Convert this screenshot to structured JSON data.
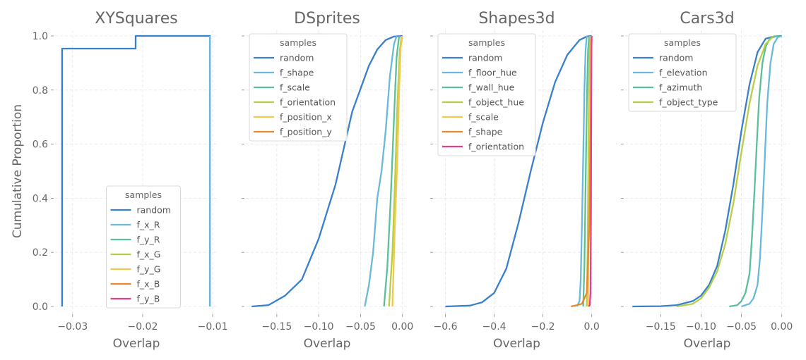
{
  "figure": {
    "ylabel": "Cumulative Proportion",
    "yticks": [
      0.0,
      0.2,
      0.4,
      0.6,
      0.8,
      1.0
    ],
    "ytick_labels": [
      "0.0",
      "0.2",
      "0.4",
      "0.6",
      "0.8",
      "1.0"
    ],
    "legend_title": "samples"
  },
  "chart_data": [
    {
      "type": "line",
      "title": "XYSquares",
      "xlabel": "Overlap",
      "ylabel": "Cumulative Proportion",
      "xlim": [
        -0.0325,
        -0.0093
      ],
      "ylim": [
        0,
        1
      ],
      "xticks": [
        -0.03,
        -0.02,
        -0.01
      ],
      "xtick_labels": [
        "−0.03",
        "−0.02",
        "−0.01"
      ],
      "legend_placement": "lower-center",
      "series": [
        {
          "name": "random",
          "color": "#3a7fcc",
          "x": [
            -0.0315,
            -0.0315,
            -0.021,
            -0.021,
            -0.0104,
            -0.0104
          ],
          "y": [
            0.0,
            0.953,
            0.953,
            1.0,
            1.0,
            0.0
          ]
        },
        {
          "name": "f_x_R",
          "color": "#6ab9d8",
          "x": [
            -0.0104,
            -0.0104
          ],
          "y": [
            0.0,
            1.0
          ]
        },
        {
          "name": "f_y_R",
          "color": "#5cbf9a",
          "x": [],
          "y": []
        },
        {
          "name": "f_x_G",
          "color": "#b5cf4a",
          "x": [],
          "y": []
        },
        {
          "name": "f_y_G",
          "color": "#f2c94c",
          "x": [],
          "y": []
        },
        {
          "name": "f_x_B",
          "color": "#e8892f",
          "x": [],
          "y": []
        },
        {
          "name": "f_y_B",
          "color": "#e83e8c",
          "x": [],
          "y": []
        }
      ]
    },
    {
      "type": "line",
      "title": "DSprites",
      "xlabel": "Overlap",
      "xlim": [
        -0.187,
        0.007
      ],
      "ylim": [
        0,
        1
      ],
      "xticks": [
        -0.15,
        -0.1,
        -0.05,
        0.0
      ],
      "xtick_labels": [
        "−0.15",
        "−0.10",
        "−0.05",
        "0.00"
      ],
      "legend_placement": "top-left",
      "series": [
        {
          "name": "random",
          "color": "#3a7fcc",
          "x": [
            -0.18,
            -0.16,
            -0.14,
            -0.12,
            -0.1,
            -0.08,
            -0.06,
            -0.04,
            -0.03,
            -0.02,
            -0.01,
            0.0
          ],
          "y": [
            0.0,
            0.005,
            0.04,
            0.1,
            0.25,
            0.45,
            0.72,
            0.89,
            0.95,
            0.985,
            0.998,
            1.0
          ]
        },
        {
          "name": "f_shape",
          "color": "#6ab9d8",
          "x": [
            -0.045,
            -0.04,
            -0.035,
            -0.03,
            -0.025,
            -0.02,
            -0.015,
            -0.01,
            -0.007
          ],
          "y": [
            0.0,
            0.08,
            0.2,
            0.4,
            0.5,
            0.65,
            0.85,
            0.97,
            1.0
          ]
        },
        {
          "name": "f_scale",
          "color": "#5cbf9a",
          "x": [
            -0.022,
            -0.018,
            -0.014,
            -0.01,
            -0.007,
            -0.004
          ],
          "y": [
            0.0,
            0.15,
            0.4,
            0.7,
            0.92,
            1.0
          ]
        },
        {
          "name": "f_orientation",
          "color": "#b5cf4a",
          "x": [
            -0.016,
            -0.012,
            -0.009,
            -0.006,
            -0.003,
            -0.001
          ],
          "y": [
            0.0,
            0.2,
            0.45,
            0.75,
            0.95,
            1.0
          ]
        },
        {
          "name": "f_position_x",
          "color": "#f2c94c",
          "x": [
            -0.012,
            -0.009,
            -0.006,
            -0.004,
            -0.002,
            0.0
          ],
          "y": [
            0.0,
            0.3,
            0.55,
            0.8,
            0.96,
            1.0
          ]
        },
        {
          "name": "f_position_y",
          "color": "#e8892f",
          "x": [],
          "y": []
        }
      ]
    },
    {
      "type": "line",
      "title": "Shapes3d",
      "xlabel": "Overlap",
      "xlim": [
        -0.645,
        0.03
      ],
      "ylim": [
        0,
        1
      ],
      "xticks": [
        -0.6,
        -0.4,
        -0.2,
        0.0
      ],
      "xtick_labels": [
        "−0.6",
        "−0.4",
        "−0.2",
        "0.0"
      ],
      "legend_placement": "top-left",
      "series": [
        {
          "name": "random",
          "color": "#3a7fcc",
          "x": [
            -0.6,
            -0.5,
            -0.45,
            -0.4,
            -0.35,
            -0.3,
            -0.25,
            -0.2,
            -0.15,
            -0.1,
            -0.05,
            -0.02,
            0.0
          ],
          "y": [
            0.0,
            0.003,
            0.015,
            0.05,
            0.14,
            0.31,
            0.5,
            0.68,
            0.83,
            0.93,
            0.985,
            0.998,
            1.0
          ]
        },
        {
          "name": "f_floor_hue",
          "color": "#6ab9d8",
          "x": [
            -0.06,
            -0.05,
            -0.045,
            -0.04,
            -0.035,
            -0.03,
            -0.025,
            -0.02
          ],
          "y": [
            0.0,
            0.02,
            0.1,
            0.3,
            0.55,
            0.8,
            0.95,
            1.0
          ]
        },
        {
          "name": "f_wall_hue",
          "color": "#5cbf9a",
          "x": [
            -0.035,
            -0.03,
            -0.025,
            -0.02,
            -0.015,
            -0.01
          ],
          "y": [
            0.0,
            0.15,
            0.45,
            0.75,
            0.95,
            1.0
          ]
        },
        {
          "name": "f_object_hue",
          "color": "#b5cf4a",
          "x": [
            -0.02,
            -0.017,
            -0.014,
            -0.011,
            -0.008,
            -0.005
          ],
          "y": [
            0.0,
            0.2,
            0.5,
            0.8,
            0.96,
            1.0
          ]
        },
        {
          "name": "f_scale",
          "color": "#f2c94c",
          "x": [
            -0.015,
            -0.012,
            -0.009,
            -0.006,
            -0.004,
            -0.002
          ],
          "y": [
            0.0,
            0.25,
            0.55,
            0.82,
            0.96,
            1.0
          ]
        },
        {
          "name": "f_shape",
          "color": "#e8892f",
          "x": [
            -0.085,
            -0.06,
            -0.04,
            -0.02,
            -0.01,
            -0.004,
            -0.002,
            0.0
          ],
          "y": [
            0.0,
            0.005,
            0.01,
            0.05,
            0.3,
            0.7,
            0.95,
            1.0
          ]
        },
        {
          "name": "f_orientation",
          "color": "#e83e8c",
          "x": [
            -0.012,
            -0.008,
            -0.005,
            -0.003,
            -0.002,
            -0.001,
            0.0
          ],
          "y": [
            0.0,
            0.005,
            0.05,
            0.35,
            0.7,
            0.95,
            1.0
          ]
        }
      ]
    },
    {
      "type": "line",
      "title": "Cars3d",
      "xlabel": "Overlap",
      "xlim": [
        -0.194,
        0.009
      ],
      "ylim": [
        0,
        1
      ],
      "xticks": [
        -0.15,
        -0.1,
        -0.05,
        0.0
      ],
      "xtick_labels": [
        "−0.15",
        "−0.10",
        "−0.05",
        "0.00"
      ],
      "legend_placement": "top-left",
      "series": [
        {
          "name": "random",
          "color": "#3a7fcc",
          "x": [
            -0.185,
            -0.15,
            -0.13,
            -0.11,
            -0.1,
            -0.09,
            -0.08,
            -0.07,
            -0.06,
            -0.05,
            -0.04,
            -0.03,
            -0.02,
            -0.01,
            0.0
          ],
          "y": [
            0.0,
            0.001,
            0.005,
            0.02,
            0.04,
            0.08,
            0.15,
            0.28,
            0.45,
            0.65,
            0.82,
            0.94,
            0.99,
            0.998,
            1.0
          ]
        },
        {
          "name": "f_elevation",
          "color": "#6ab9d8",
          "x": [
            -0.05,
            -0.04,
            -0.035,
            -0.03,
            -0.027,
            -0.024,
            -0.021,
            -0.018,
            -0.014,
            -0.01,
            -0.005,
            0.0
          ],
          "y": [
            0.0,
            0.01,
            0.03,
            0.08,
            0.18,
            0.35,
            0.55,
            0.75,
            0.9,
            0.97,
            0.995,
            1.0
          ]
        },
        {
          "name": "f_azimuth",
          "color": "#5cbf9a",
          "x": [
            -0.065,
            -0.055,
            -0.05,
            -0.045,
            -0.04,
            -0.037,
            -0.034,
            -0.031,
            -0.028,
            -0.024,
            -0.02,
            -0.015,
            -0.008,
            -0.003
          ],
          "y": [
            0.0,
            0.005,
            0.02,
            0.05,
            0.12,
            0.25,
            0.42,
            0.6,
            0.77,
            0.9,
            0.96,
            0.99,
            0.998,
            1.0
          ]
        },
        {
          "name": "f_object_type",
          "color": "#b5cf4a",
          "x": [
            -0.13,
            -0.11,
            -0.1,
            -0.09,
            -0.08,
            -0.07,
            -0.06,
            -0.05,
            -0.04,
            -0.03,
            -0.02,
            -0.01
          ],
          "y": [
            0.0,
            0.01,
            0.03,
            0.07,
            0.13,
            0.23,
            0.38,
            0.57,
            0.75,
            0.89,
            0.97,
            1.0
          ]
        }
      ]
    }
  ]
}
